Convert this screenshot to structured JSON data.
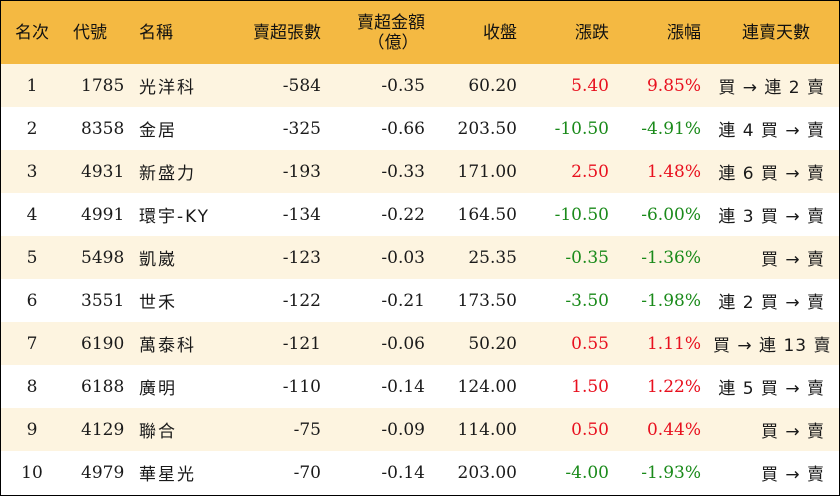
{
  "headers": {
    "rank": "名次",
    "code": "代號",
    "name": "名稱",
    "sell_lots": "賣超張數",
    "sell_amount_l1": "賣超金額",
    "sell_amount_l2": "（億）",
    "close": "收盤",
    "change": "漲跌",
    "pct": "漲幅",
    "streak": "連賣天數"
  },
  "rows": [
    {
      "rank": "1",
      "code": "1785",
      "name": "光洋科",
      "lots": "-584",
      "amount": "-0.35",
      "close": "60.20",
      "change": "5.40",
      "pct": "9.85%",
      "dir": "up",
      "streak": "買 → 連 2 賣"
    },
    {
      "rank": "2",
      "code": "8358",
      "name": "金居",
      "lots": "-325",
      "amount": "-0.66",
      "close": "203.50",
      "change": "-10.50",
      "pct": "-4.91%",
      "dir": "down",
      "streak": "連 4 買 → 賣"
    },
    {
      "rank": "3",
      "code": "4931",
      "name": "新盛力",
      "lots": "-193",
      "amount": "-0.33",
      "close": "171.00",
      "change": "2.50",
      "pct": "1.48%",
      "dir": "up",
      "streak": "連 6 買 → 賣"
    },
    {
      "rank": "4",
      "code": "4991",
      "name": "環宇-KY",
      "lots": "-134",
      "amount": "-0.22",
      "close": "164.50",
      "change": "-10.50",
      "pct": "-6.00%",
      "dir": "down",
      "streak": "連 3 買 → 賣"
    },
    {
      "rank": "5",
      "code": "5498",
      "name": "凱崴",
      "lots": "-123",
      "amount": "-0.03",
      "close": "25.35",
      "change": "-0.35",
      "pct": "-1.36%",
      "dir": "down",
      "streak": "買 → 賣"
    },
    {
      "rank": "6",
      "code": "3551",
      "name": "世禾",
      "lots": "-122",
      "amount": "-0.21",
      "close": "173.50",
      "change": "-3.50",
      "pct": "-1.98%",
      "dir": "down",
      "streak": "連 2 買 → 賣"
    },
    {
      "rank": "7",
      "code": "6190",
      "name": "萬泰科",
      "lots": "-121",
      "amount": "-0.06",
      "close": "50.20",
      "change": "0.55",
      "pct": "1.11%",
      "dir": "up",
      "streak": "買 → 連 13 賣"
    },
    {
      "rank": "8",
      "code": "6188",
      "name": "廣明",
      "lots": "-110",
      "amount": "-0.14",
      "close": "124.00",
      "change": "1.50",
      "pct": "1.22%",
      "dir": "up",
      "streak": "連 5 買 → 賣"
    },
    {
      "rank": "9",
      "code": "4129",
      "name": "聯合",
      "lots": "-75",
      "amount": "-0.09",
      "close": "114.00",
      "change": "0.50",
      "pct": "0.44%",
      "dir": "up",
      "streak": "買 → 賣"
    },
    {
      "rank": "10",
      "code": "4979",
      "name": "華星光",
      "lots": "-70",
      "amount": "-0.14",
      "close": "203.00",
      "change": "-4.00",
      "pct": "-1.93%",
      "dir": "down",
      "streak": "買 → 賣"
    }
  ],
  "colors": {
    "header_bg": "#f4b942",
    "stripe_bg": "#fdf4e0",
    "up": "#e8101e",
    "down": "#1a8a1a"
  }
}
